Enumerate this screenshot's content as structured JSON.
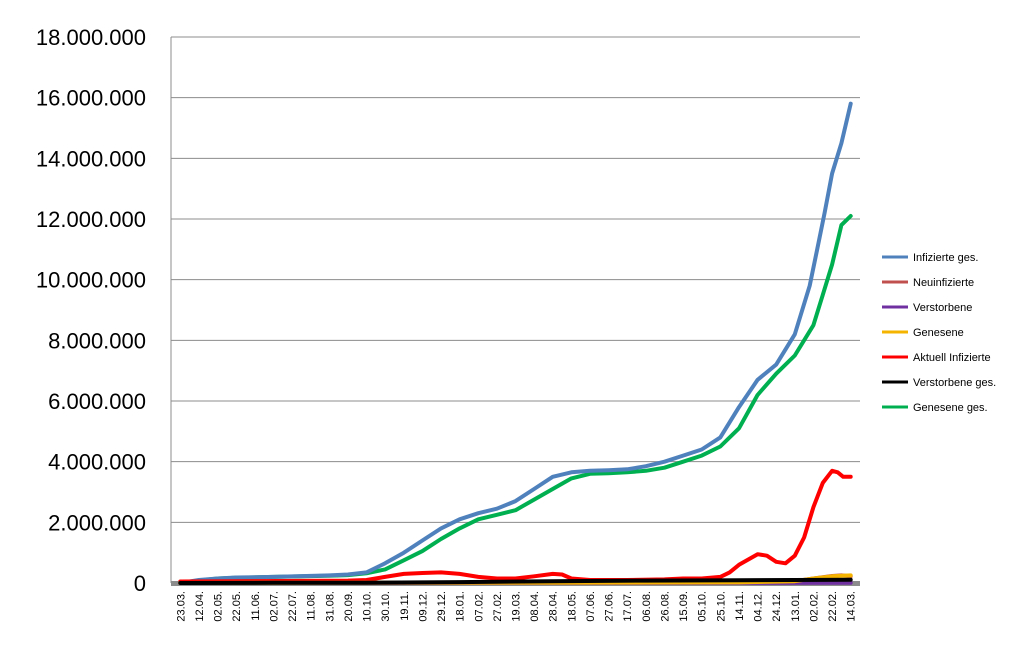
{
  "chart_data": {
    "type": "line",
    "title": "",
    "xlabel": "",
    "ylabel": "",
    "ylim": [
      0,
      18000000
    ],
    "y_ticks": [
      0,
      2000000,
      4000000,
      6000000,
      8000000,
      10000000,
      12000000,
      14000000,
      16000000,
      18000000
    ],
    "y_tick_labels": [
      "0",
      "2.000.000",
      "4.000.000",
      "6.000.000",
      "8.000.000",
      "10.000.000",
      "12.000.000",
      "14.000.000",
      "16.000.000",
      "18.000.000"
    ],
    "categories": [
      "23.03.",
      "12.04.",
      "02.05.",
      "22.05.",
      "11.06.",
      "02.07.",
      "22.07.",
      "11.08.",
      "31.08.",
      "20.09.",
      "10.10.",
      "30.10.",
      "19.11.",
      "09.12.",
      "29.12.",
      "18.01.",
      "07.02.",
      "27.02.",
      "19.03.",
      "08.04.",
      "28.04.",
      "18.05.",
      "07.06.",
      "27.06.",
      "17.07.",
      "06.08.",
      "26.08.",
      "15.09.",
      "05.10.",
      "25.10.",
      "14.11.",
      "04.12.",
      "24.12.",
      "13.01.",
      "02.02.",
      "22.02.",
      "14.03."
    ],
    "grid": "horizontal",
    "legend_position": "right",
    "series": [
      {
        "name": "Infizierte ges.",
        "color": "#4F81BD",
        "values": [
          [
            0,
            0
          ],
          [
            1,
            100000
          ],
          [
            2,
            150000
          ],
          [
            3,
            180000
          ],
          [
            5,
            200000
          ],
          [
            8,
            250000
          ],
          [
            9,
            280000
          ],
          [
            10,
            350000
          ],
          [
            11,
            650000
          ],
          [
            12,
            1000000
          ],
          [
            13,
            1400000
          ],
          [
            14,
            1800000
          ],
          [
            15,
            2100000
          ],
          [
            16,
            2300000
          ],
          [
            17,
            2450000
          ],
          [
            18,
            2700000
          ],
          [
            19,
            3100000
          ],
          [
            20,
            3500000
          ],
          [
            21,
            3650000
          ],
          [
            22,
            3700000
          ],
          [
            23,
            3720000
          ],
          [
            24,
            3750000
          ],
          [
            25,
            3850000
          ],
          [
            26,
            4000000
          ],
          [
            27,
            4200000
          ],
          [
            28,
            4400000
          ],
          [
            29,
            4800000
          ],
          [
            30,
            5800000
          ],
          [
            31,
            6700000
          ],
          [
            32,
            7200000
          ],
          [
            33,
            8200000
          ],
          [
            33.8,
            9800000
          ],
          [
            34.2,
            11000000
          ],
          [
            34.6,
            12200000
          ],
          [
            35,
            13500000
          ],
          [
            35.5,
            14500000
          ],
          [
            36,
            15800000
          ]
        ]
      },
      {
        "name": "Neuinfizierte",
        "color": "#C0504D",
        "values": [
          [
            0,
            0
          ],
          [
            10,
            5000
          ],
          [
            20,
            15000
          ],
          [
            30,
            20000
          ],
          [
            33,
            60000
          ],
          [
            34,
            150000
          ],
          [
            35,
            230000
          ],
          [
            35.5,
            250000
          ],
          [
            36,
            220000
          ]
        ]
      },
      {
        "name": "Verstorbene",
        "color": "#7030A0",
        "values": [
          [
            0,
            0
          ],
          [
            20,
            1000
          ],
          [
            30,
            2000
          ],
          [
            36,
            5000
          ]
        ]
      },
      {
        "name": "Genesene",
        "color": "#F4B400",
        "values": [
          [
            0,
            0
          ],
          [
            10,
            5000
          ],
          [
            20,
            10000
          ],
          [
            30,
            20000
          ],
          [
            33,
            60000
          ],
          [
            34,
            150000
          ],
          [
            35,
            220000
          ],
          [
            36,
            250000
          ]
        ]
      },
      {
        "name": "Aktuell Infizierte",
        "color": "#FF0000",
        "values": [
          [
            0,
            50000
          ],
          [
            9,
            80000
          ],
          [
            10,
            100000
          ],
          [
            11,
            200000
          ],
          [
            12,
            300000
          ],
          [
            13,
            330000
          ],
          [
            14,
            350000
          ],
          [
            15,
            300000
          ],
          [
            16,
            200000
          ],
          [
            17,
            150000
          ],
          [
            18,
            150000
          ],
          [
            19,
            220000
          ],
          [
            20,
            300000
          ],
          [
            20.5,
            280000
          ],
          [
            21,
            150000
          ],
          [
            22,
            100000
          ],
          [
            24,
            100000
          ],
          [
            26,
            120000
          ],
          [
            27,
            150000
          ],
          [
            28,
            150000
          ],
          [
            29,
            200000
          ],
          [
            29.5,
            350000
          ],
          [
            30,
            600000
          ],
          [
            31,
            950000
          ],
          [
            31.5,
            900000
          ],
          [
            32,
            700000
          ],
          [
            32.5,
            650000
          ],
          [
            33,
            900000
          ],
          [
            33.5,
            1500000
          ],
          [
            34,
            2500000
          ],
          [
            34.5,
            3300000
          ],
          [
            35,
            3700000
          ],
          [
            35.3,
            3650000
          ],
          [
            35.6,
            3500000
          ],
          [
            36,
            3500000
          ]
        ]
      },
      {
        "name": "Verstorbene ges.",
        "color": "#000000",
        "values": [
          [
            0,
            0
          ],
          [
            5,
            5000
          ],
          [
            10,
            10000
          ],
          [
            15,
            30000
          ],
          [
            20,
            60000
          ],
          [
            25,
            80000
          ],
          [
            30,
            90000
          ],
          [
            33,
            100000
          ],
          [
            36,
            110000
          ]
        ]
      },
      {
        "name": "Genesene ges.",
        "color": "#00B050",
        "values": [
          [
            0,
            0
          ],
          [
            1,
            80000
          ],
          [
            2,
            150000
          ],
          [
            3,
            170000
          ],
          [
            5,
            200000
          ],
          [
            8,
            240000
          ],
          [
            9,
            260000
          ],
          [
            10,
            320000
          ],
          [
            11,
            450000
          ],
          [
            12,
            750000
          ],
          [
            13,
            1050000
          ],
          [
            14,
            1450000
          ],
          [
            15,
            1800000
          ],
          [
            16,
            2100000
          ],
          [
            17,
            2250000
          ],
          [
            18,
            2400000
          ],
          [
            19,
            2750000
          ],
          [
            20,
            3100000
          ],
          [
            21,
            3450000
          ],
          [
            22,
            3600000
          ],
          [
            23,
            3620000
          ],
          [
            24,
            3650000
          ],
          [
            25,
            3700000
          ],
          [
            26,
            3800000
          ],
          [
            27,
            4000000
          ],
          [
            28,
            4200000
          ],
          [
            29,
            4500000
          ],
          [
            30,
            5100000
          ],
          [
            31,
            6200000
          ],
          [
            32,
            6900000
          ],
          [
            33,
            7500000
          ],
          [
            34,
            8500000
          ],
          [
            34.5,
            9500000
          ],
          [
            35,
            10500000
          ],
          [
            35.5,
            11800000
          ],
          [
            36,
            12100000
          ]
        ]
      }
    ]
  }
}
